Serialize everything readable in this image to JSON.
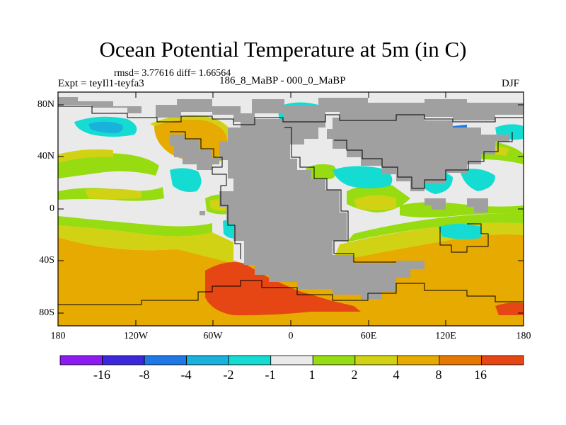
{
  "title": "Ocean Potential Temperature at 5m (in C)",
  "stats": "rmsd= 3.77616 diff= 1.66564",
  "experiment": "Expt = teyIl1-teyfa3",
  "period": "186_8_MaBP - 000_0_MaBP",
  "season": "DJF",
  "axes": {
    "y_ticks": [
      {
        "label": "80N",
        "value": 80
      },
      {
        "label": "40N",
        "value": 40
      },
      {
        "label": "0",
        "value": 0
      },
      {
        "label": "40S",
        "value": -40
      },
      {
        "label": "80S",
        "value": -80
      }
    ],
    "x_ticks": [
      {
        "label": "180",
        "value": -180
      },
      {
        "label": "120W",
        "value": -120
      },
      {
        "label": "60W",
        "value": -60
      },
      {
        "label": "0",
        "value": 0
      },
      {
        "label": "60E",
        "value": 60
      },
      {
        "label": "120E",
        "value": 120
      },
      {
        "label": "180",
        "value": 180
      }
    ],
    "lon_range": [
      -180,
      180
    ],
    "lat_range": [
      -90,
      90
    ]
  },
  "colorbar": {
    "colors": [
      "#8c1cf0",
      "#3c28dc",
      "#1e78e6",
      "#18b2dc",
      "#14dcd2",
      "#eaeaea",
      "#96dc10",
      "#d2d214",
      "#e6aa00",
      "#e67800",
      "#e64614"
    ],
    "labels": [
      "-16",
      "-8",
      "-4",
      "-2",
      "-1",
      "1",
      "2",
      "4",
      "8",
      "16"
    ]
  },
  "colors": {
    "land": "#a0a0a0",
    "neutral": "#eaeaea",
    "outline": "#000000"
  }
}
